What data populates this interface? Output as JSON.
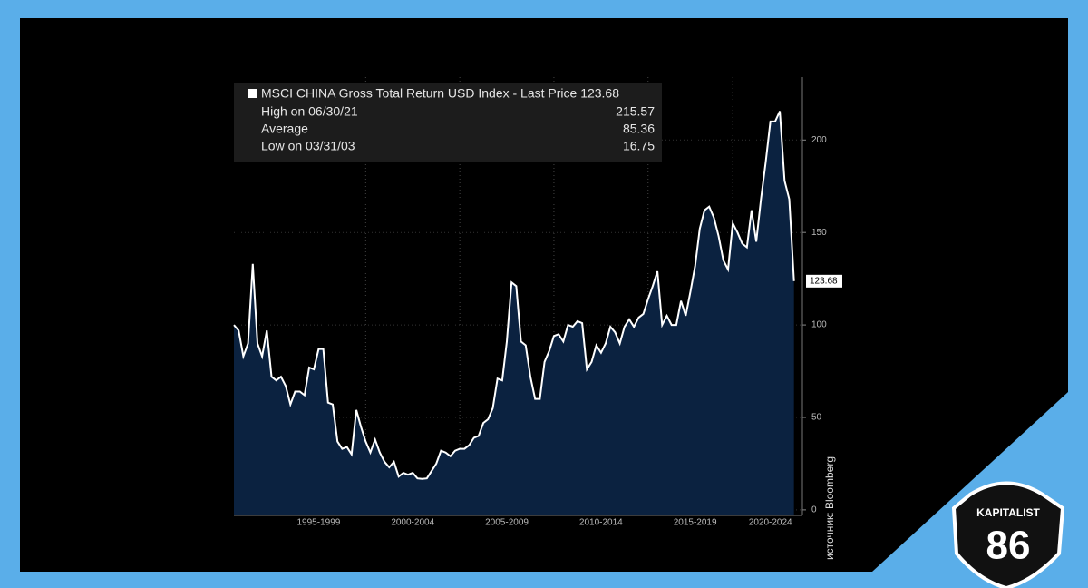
{
  "chart_data": {
    "type": "area",
    "series": [
      {
        "name": "MSCI CHINA Gross Total Return USD Index - Last Price 123.68",
        "color": "#ffffff",
        "fill": "#0b2240",
        "values": [
          100,
          97,
          83,
          90,
          133,
          90,
          83,
          97,
          72,
          70,
          72,
          67,
          57,
          64,
          64,
          62,
          77,
          76,
          87,
          87,
          58,
          57,
          37,
          33,
          34,
          30,
          54,
          45,
          37,
          31,
          38,
          31,
          26,
          23,
          26,
          18,
          20,
          19,
          20,
          17,
          16.75,
          17,
          21,
          25,
          32,
          31,
          29,
          32,
          33,
          33,
          35,
          39,
          40,
          47,
          49,
          55,
          71,
          70,
          91,
          123,
          121,
          91,
          89,
          72,
          60,
          60,
          80,
          86,
          94,
          95,
          91,
          100,
          99,
          102,
          101,
          76,
          80,
          89,
          85,
          90,
          99,
          96,
          90,
          99,
          103,
          99,
          104,
          106,
          114,
          121,
          129,
          100,
          105,
          100,
          100,
          113,
          105,
          118,
          132,
          152,
          162,
          164,
          158,
          148,
          135,
          130,
          155,
          150,
          144,
          142,
          162,
          145,
          168,
          188,
          210,
          210,
          215.57,
          178,
          168,
          123.68
        ]
      }
    ],
    "x": [
      1993,
      1993.25,
      1993.5,
      1993.75,
      1994,
      1994.25,
      1994.5,
      1994.75,
      1995,
      1995.25,
      1995.5,
      1995.75,
      1996,
      1996.25,
      1996.5,
      1996.75,
      1997,
      1997.25,
      1997.5,
      1997.75,
      1998,
      1998.25,
      1998.5,
      1998.75,
      1999,
      1999.25,
      1999.5,
      1999.75,
      2000,
      2000.25,
      2000.5,
      2000.75,
      2001,
      2001.25,
      2001.5,
      2001.75,
      2002,
      2002.25,
      2002.5,
      2002.75,
      2003,
      2003.25,
      2003.5,
      2003.75,
      2004,
      2004.25,
      2004.5,
      2004.75,
      2005,
      2005.25,
      2005.5,
      2005.75,
      2006,
      2006.25,
      2006.5,
      2006.75,
      2007,
      2007.25,
      2007.5,
      2007.75,
      2008,
      2008.25,
      2008.5,
      2008.75,
      2009,
      2009.25,
      2009.5,
      2009.75,
      2010,
      2010.25,
      2010.5,
      2010.75,
      2011,
      2011.25,
      2011.5,
      2011.75,
      2012,
      2012.25,
      2012.5,
      2012.75,
      2013,
      2013.25,
      2013.5,
      2013.75,
      2014,
      2014.25,
      2014.5,
      2014.75,
      2015,
      2015.25,
      2015.5,
      2015.75,
      2016,
      2016.25,
      2016.5,
      2016.75,
      2017,
      2017.25,
      2017.5,
      2017.75,
      2018,
      2018.25,
      2018.5,
      2018.75,
      2019,
      2019.25,
      2019.5,
      2019.75,
      2020,
      2020.25,
      2020.5,
      2020.75,
      2021,
      2021.25,
      2021.5,
      2021.75,
      2022,
      2022.25,
      2022.5,
      2022.75
    ],
    "xlim": [
      1993,
      2023.2
    ],
    "xticks": [
      {
        "value": 1997.5,
        "label": "1995-1999"
      },
      {
        "value": 2002.5,
        "label": "2000-2004"
      },
      {
        "value": 2007.5,
        "label": "2005-2009"
      },
      {
        "value": 2012.5,
        "label": "2010-2014"
      },
      {
        "value": 2017.5,
        "label": "2015-2019"
      },
      {
        "value": 2021.5,
        "label": "2020-2024"
      }
    ],
    "ylim": [
      -3,
      234
    ],
    "yticks": [
      0,
      50,
      100,
      150,
      200
    ],
    "grid": true,
    "stats": [
      {
        "label": "High on 06/30/21",
        "value": 215.57
      },
      {
        "label": "Average",
        "value": 85.36
      },
      {
        "label": "Low on 03/31/03",
        "value": 16.75
      }
    ],
    "source": "источник: Bloomberg"
  },
  "logo": {
    "top": "KAPITALIST",
    "number": "86"
  }
}
